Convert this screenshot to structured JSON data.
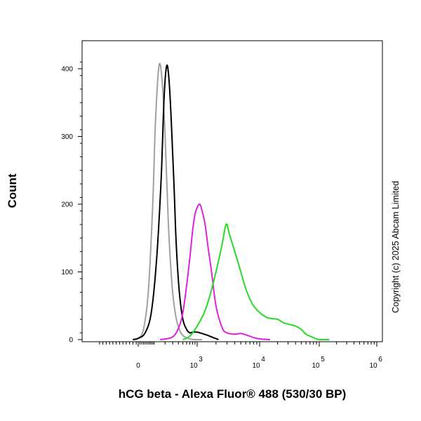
{
  "chart_data": {
    "type": "line",
    "xlabel": "hCG beta - Alexa Fluor® 488 (530/30 BP)",
    "ylabel": "Count",
    "x_scale": "biexponential",
    "x_ticks": [
      {
        "value": 0,
        "base": "0",
        "exp": ""
      },
      {
        "value": 1000,
        "base": "10",
        "exp": "3"
      },
      {
        "value": 10000,
        "base": "10",
        "exp": "4"
      },
      {
        "value": 100000,
        "base": "10",
        "exp": "5"
      },
      {
        "value": 1000000,
        "base": "10",
        "exp": "6"
      }
    ],
    "y_ticks": [
      0,
      100,
      200,
      300,
      400
    ],
    "ylim": [
      0,
      400
    ],
    "grid": false,
    "copyright": "Copyright (c) 2025 Abcam Limited",
    "series": [
      {
        "color": "#a0a0a0",
        "x": [
          -40,
          0,
          30,
          60,
          90,
          110,
          140,
          170,
          200,
          240,
          290,
          350,
          420,
          500,
          600,
          700,
          900,
          1200
        ],
        "y": [
          0,
          2,
          15,
          70,
          200,
          320,
          405,
          380,
          300,
          170,
          80,
          35,
          15,
          6,
          3,
          1,
          0,
          0
        ]
      },
      {
        "color": "#000000",
        "x": [
          -40,
          0,
          40,
          80,
          120,
          160,
          190,
          220,
          250,
          280,
          320,
          360,
          420,
          500,
          600,
          700,
          800,
          1000,
          1200,
          1500,
          1800,
          2200
        ],
        "y": [
          0,
          2,
          10,
          40,
          120,
          240,
          360,
          405,
          380,
          320,
          230,
          140,
          70,
          30,
          15,
          10,
          11,
          11,
          9,
          6,
          3,
          0
        ]
      },
      {
        "color": "#e020e0",
        "x": [
          150,
          300,
          420,
          500,
          600,
          700,
          800,
          900,
          1000,
          1100,
          1200,
          1350,
          1500,
          1700,
          2000,
          2500,
          3000,
          4000,
          5000,
          6000,
          7000,
          8000,
          10000,
          15000
        ],
        "y": [
          0,
          4,
          20,
          40,
          80,
          120,
          160,
          185,
          195,
          200,
          190,
          168,
          135,
          100,
          50,
          18,
          10,
          8,
          9,
          7,
          5,
          3,
          1,
          0
        ]
      },
      {
        "color": "#22dd22",
        "x": [
          500,
          700,
          1000,
          1300,
          1600,
          2000,
          2500,
          2800,
          3000,
          3300,
          4000,
          5000,
          6000,
          7000,
          8000,
          10000,
          13000,
          16000,
          20000,
          25000,
          30000,
          40000,
          50000,
          60000,
          80000,
          100000,
          150000
        ],
        "y": [
          0,
          5,
          20,
          40,
          65,
          100,
          140,
          165,
          170,
          155,
          130,
          100,
          75,
          60,
          50,
          40,
          33,
          31,
          30,
          25,
          23,
          20,
          15,
          8,
          3,
          0,
          0
        ]
      }
    ]
  }
}
